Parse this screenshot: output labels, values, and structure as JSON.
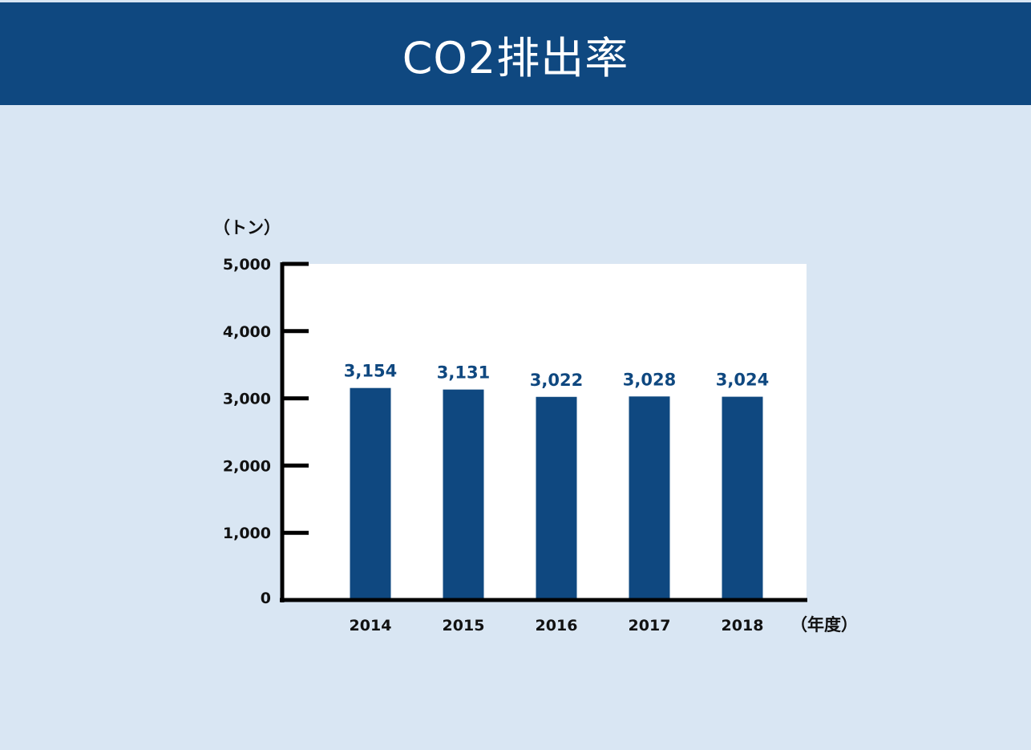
{
  "header": {
    "title": "CO2排出率"
  },
  "colors": {
    "header_bg": "#0f4880",
    "page_bg": "#d9e6f3",
    "bar": "#0f4880",
    "value_label": "#0f4880",
    "plot_bg": "#ffffff"
  },
  "chart_data": {
    "type": "bar",
    "title": "CO2排出率",
    "ylabel": "（トン）",
    "xlabel": "（年度）",
    "categories": [
      "2014",
      "2015",
      "2016",
      "2017",
      "2018"
    ],
    "series": [
      {
        "values": [
          3154,
          3131,
          3022,
          3028,
          3024
        ]
      }
    ],
    "data_labels": [
      "3,154",
      "3,131",
      "3,022",
      "3,028",
      "3,024"
    ],
    "y_ticks": [
      0,
      1000,
      2000,
      3000,
      4000,
      5000
    ],
    "y_tick_labels": [
      "0",
      "1,000",
      "2,000",
      "3,000",
      "4,000",
      "5,000"
    ],
    "ylim": [
      0,
      5000
    ],
    "grid": false,
    "legend": "none"
  }
}
